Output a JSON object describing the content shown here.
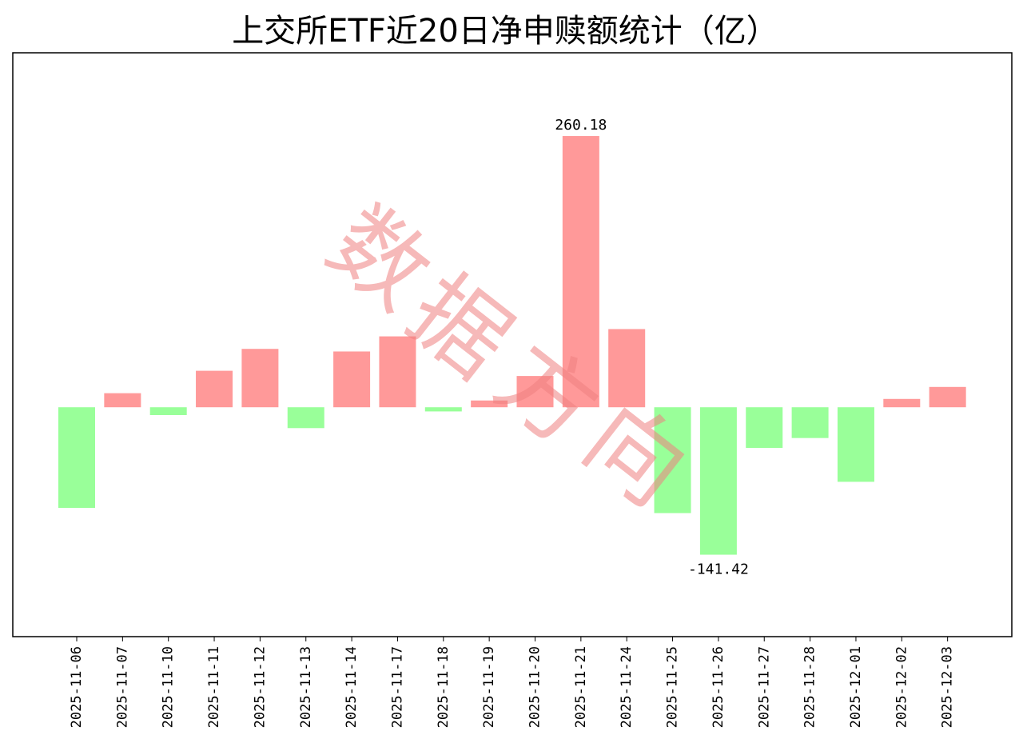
{
  "chart_data": {
    "type": "bar",
    "title": "上交所ETF近20日净申赎额统计（亿）",
    "xlabel": "",
    "ylabel": "",
    "ylim": [
      -220,
      340
    ],
    "grid": false,
    "legend": "none",
    "categories": [
      "2025-11-06",
      "2025-11-07",
      "2025-11-10",
      "2025-11-11",
      "2025-11-12",
      "2025-11-13",
      "2025-11-14",
      "2025-11-17",
      "2025-11-18",
      "2025-11-19",
      "2025-11-20",
      "2025-11-21",
      "2025-11-24",
      "2025-11-25",
      "2025-11-26",
      "2025-11-27",
      "2025-11-28",
      "2025-12-01",
      "2025-12-02",
      "2025-12-03"
    ],
    "values": [
      -96.5,
      13.5,
      -7.5,
      35.0,
      56.0,
      -20.0,
      53.5,
      68.0,
      -4.0,
      6.5,
      30.0,
      260.18,
      75.0,
      -101.5,
      -141.42,
      -39.0,
      -29.5,
      -71.5,
      8.0,
      19.5
    ],
    "annotations": [
      {
        "category": "2025-11-21",
        "text": "260.18"
      },
      {
        "category": "2025-11-26",
        "text": "-141.42"
      }
    ],
    "colors": {
      "positive": "#ff9999",
      "negative": "#99ff99"
    }
  },
  "watermark": {
    "text": "数据方向",
    "color": "#f08080"
  }
}
